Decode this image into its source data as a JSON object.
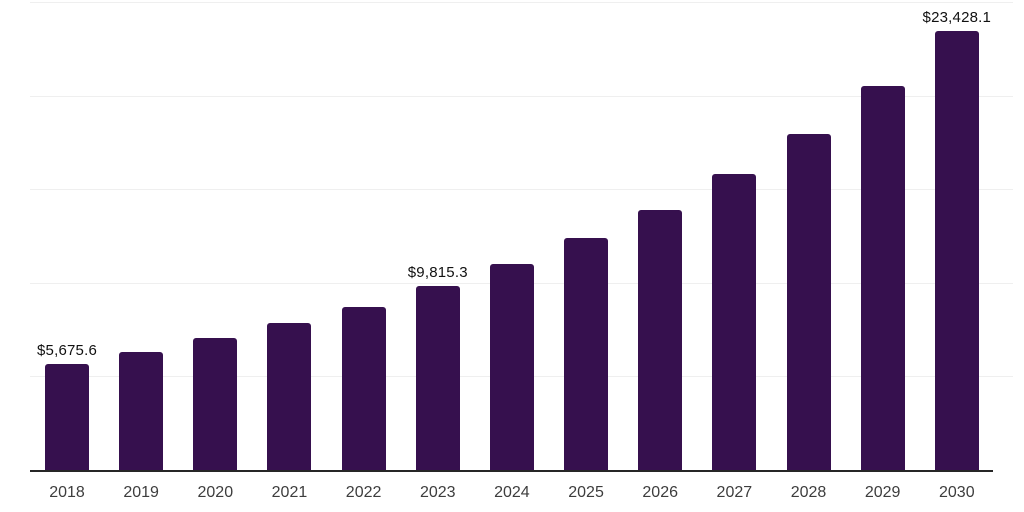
{
  "chart_data": {
    "type": "bar",
    "title": "",
    "xlabel": "",
    "ylabel": "",
    "categories": [
      "2018",
      "2019",
      "2020",
      "2021",
      "2022",
      "2023",
      "2024",
      "2025",
      "2026",
      "2027",
      "2028",
      "2029",
      "2030"
    ],
    "values": [
      5675.6,
      6310,
      7050,
      7870,
      8720,
      9815.3,
      11000,
      12380,
      13890,
      15800,
      17930,
      20490,
      23428.1
    ],
    "value_labels": {
      "2018": "$5,675.6",
      "2023": "$9,815.3",
      "2030": "$23,428.1"
    },
    "ylim": [
      0,
      25000
    ],
    "grid_step": 5000,
    "grid_visible": true,
    "y_tick_labels_visible": false,
    "legend_position": "none",
    "colors": {
      "bar": "#36104e",
      "gridline": "#efefef",
      "axis_line": "#262626",
      "tick_label": "#3d3d3d",
      "value_label": "#111111",
      "background": "#ffffff"
    }
  }
}
